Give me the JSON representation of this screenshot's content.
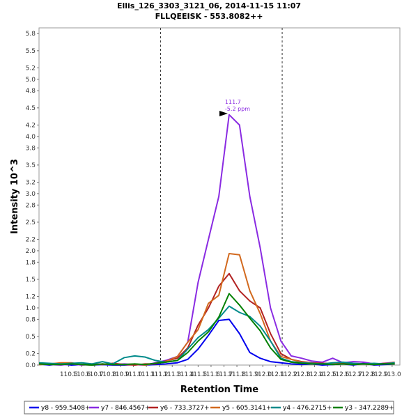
{
  "chart_data": {
    "type": "line",
    "title": "Ellis_126_3303_3121_06, 2014-11-15 11:07",
    "subtitle": "FLLQEEISK - 553.8082++",
    "xlabel": "Retention Time",
    "ylabel": "Intensity 10^3",
    "xlim": [
      110.27,
      113.06
    ],
    "ylim": [
      0,
      5.9
    ],
    "x_ticks": [
      110.5,
      110.6,
      110.7,
      110.8,
      110.9,
      111.0,
      111.1,
      111.2,
      111.3,
      111.4,
      111.5,
      111.6,
      111.7,
      111.8,
      111.9,
      112.0,
      112.1,
      112.2,
      112.3,
      112.4,
      112.5,
      112.6,
      112.7,
      112.8,
      112.9,
      113.0
    ],
    "x_tick_labels": [
      "110.5",
      "110.6",
      "110.7",
      "110.8",
      "110.9",
      "111.0",
      "111.1",
      "111.2",
      "111.3",
      "111.4",
      "111.5",
      "111.6",
      "111.7",
      "111.8",
      "111.9",
      "112.0",
      "112.1",
      "112.2",
      "112.3",
      "112.4",
      "112.5",
      "112.6",
      "112.7",
      "112.8",
      "112.9",
      "113.0"
    ],
    "y_ticks": [
      0.0,
      0.2,
      0.5,
      0.8,
      1.0,
      1.2,
      1.5,
      1.8,
      2.0,
      2.2,
      2.5,
      2.8,
      3.0,
      3.2,
      3.5,
      3.8,
      4.0,
      4.2,
      4.5,
      4.8,
      5.0,
      5.2,
      5.5,
      5.8
    ],
    "y_tick_labels": [
      "0.0",
      "0.2",
      "0.5",
      "0.8",
      "1.0",
      "1.2",
      "1.5",
      "1.8",
      "2.0",
      "2.2",
      "2.5",
      "2.8",
      "3.0",
      "3.2",
      "3.5",
      "3.8",
      "4.0",
      "4.2",
      "4.5",
      "4.8",
      "5.0",
      "5.2",
      "5.5",
      "5.8"
    ],
    "vlines": [
      111.21,
      112.15
    ],
    "grid": false,
    "legend_position": "bottom",
    "annotation": {
      "x": 111.74,
      "y": 4.4,
      "label_time": "111.7",
      "label_ppm": "-5.2 ppm"
    },
    "x": [
      110.27,
      110.35,
      110.44,
      110.52,
      110.6,
      110.68,
      110.76,
      110.84,
      110.93,
      111.01,
      111.09,
      111.17,
      111.25,
      111.34,
      111.42,
      111.5,
      111.58,
      111.66,
      111.74,
      111.82,
      111.9,
      111.98,
      112.06,
      112.14,
      112.22,
      112.3,
      112.38,
      112.46,
      112.54,
      112.62,
      112.7,
      112.78,
      112.86,
      112.94,
      113.02
    ],
    "series": [
      {
        "name": "y8 - 959.5408+",
        "color": "#0000ee",
        "values": [
          0.02,
          0.0,
          0.02,
          0.0,
          0.01,
          0.0,
          0.01,
          0.0,
          0.0,
          0.01,
          0.0,
          0.01,
          0.02,
          0.04,
          0.1,
          0.28,
          0.52,
          0.78,
          0.8,
          0.55,
          0.22,
          0.12,
          0.06,
          0.04,
          0.02,
          0.01,
          0.02,
          0.0,
          0.01,
          0.02,
          0.0,
          0.03,
          0.0,
          0.01,
          0.02
        ]
      },
      {
        "name": "y7 - 846.4567+",
        "color": "#8a2be2",
        "values": [
          0.02,
          0.01,
          0.0,
          0.02,
          0.0,
          0.01,
          0.02,
          0.01,
          0.02,
          0.01,
          0.0,
          0.04,
          0.08,
          0.15,
          0.4,
          1.45,
          2.2,
          2.95,
          4.38,
          4.2,
          2.95,
          2.05,
          1.0,
          0.42,
          0.16,
          0.12,
          0.07,
          0.05,
          0.12,
          0.04,
          0.06,
          0.05,
          0.02,
          0.03,
          0.05
        ]
      },
      {
        "name": "y6 - 733.3727+",
        "color": "#b22222",
        "values": [
          0.01,
          0.02,
          0.03,
          0.03,
          0.01,
          0.02,
          0.01,
          0.03,
          0.01,
          0.0,
          0.02,
          0.02,
          0.07,
          0.12,
          0.3,
          0.7,
          1.0,
          1.38,
          1.6,
          1.3,
          1.12,
          1.0,
          0.55,
          0.2,
          0.1,
          0.06,
          0.04,
          0.03,
          0.03,
          0.03,
          0.02,
          0.02,
          0.01,
          0.03,
          0.02
        ]
      },
      {
        "name": "y5 - 605.3141+",
        "color": "#d2691e",
        "values": [
          0.01,
          0.02,
          0.04,
          0.04,
          0.01,
          0.0,
          0.02,
          0.01,
          0.01,
          0.02,
          0.0,
          0.03,
          0.06,
          0.15,
          0.4,
          0.62,
          1.08,
          1.22,
          1.95,
          1.93,
          1.3,
          0.9,
          0.42,
          0.15,
          0.1,
          0.05,
          0.03,
          0.02,
          0.02,
          0.02,
          0.01,
          0.02,
          0.01,
          0.02,
          0.05
        ]
      },
      {
        "name": "y4 - 476.2715+",
        "color": "#008b8b",
        "values": [
          0.04,
          0.03,
          0.02,
          0.03,
          0.04,
          0.02,
          0.06,
          0.02,
          0.13,
          0.16,
          0.14,
          0.08,
          0.05,
          0.08,
          0.28,
          0.48,
          0.62,
          0.82,
          1.03,
          0.92,
          0.85,
          0.68,
          0.42,
          0.12,
          0.06,
          0.04,
          0.03,
          0.02,
          0.04,
          0.05,
          0.03,
          0.02,
          0.03,
          0.02,
          0.04
        ]
      },
      {
        "name": "y3 - 347.2289+",
        "color": "#008000",
        "values": [
          0.02,
          0.01,
          0.01,
          0.02,
          0.01,
          0.0,
          0.02,
          0.01,
          0.01,
          0.02,
          0.01,
          0.03,
          0.05,
          0.08,
          0.22,
          0.42,
          0.58,
          0.84,
          1.25,
          1.05,
          0.82,
          0.6,
          0.3,
          0.1,
          0.05,
          0.03,
          0.02,
          0.02,
          0.01,
          0.02,
          0.01,
          0.02,
          0.01,
          0.02,
          0.02
        ]
      }
    ]
  }
}
